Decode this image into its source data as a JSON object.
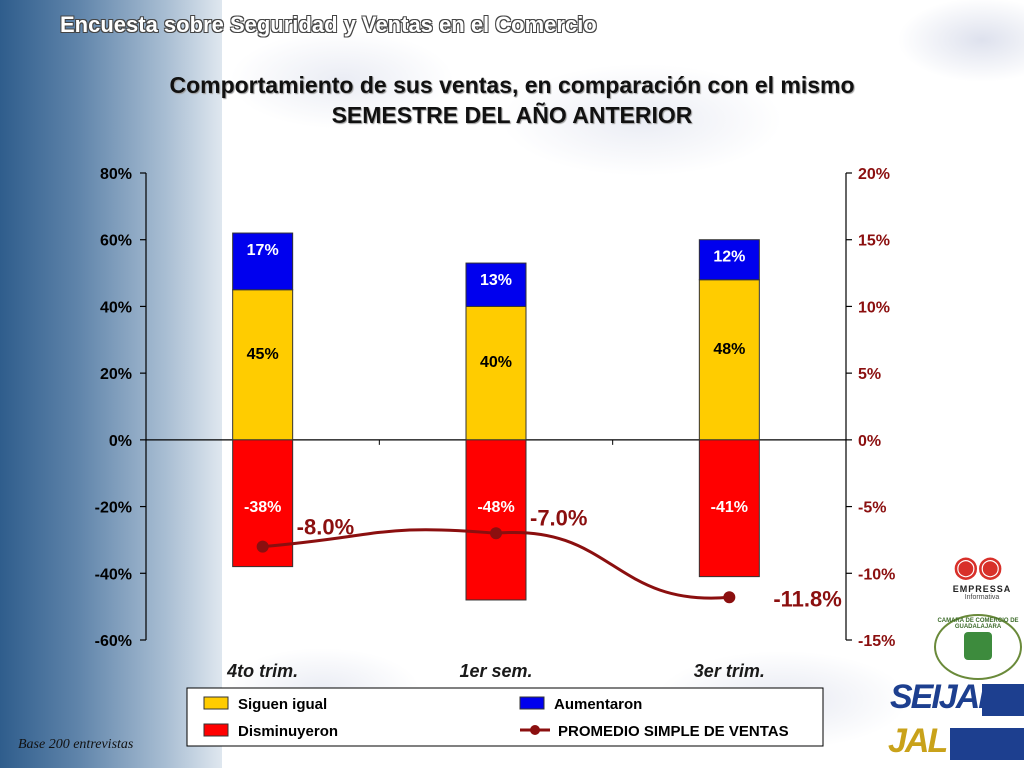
{
  "header": {
    "title": "Encuesta sobre Seguridad y Ventas en el Comercio"
  },
  "chart_data": {
    "type": "bar",
    "title_line1": "Comportamiento de sus ventas, en comparación con el mismo",
    "title_line2": "SEMESTRE DEL AÑO ANTERIOR",
    "categories": [
      "4to trim.",
      "1er sem.",
      "3er trim."
    ],
    "ylim_left": [
      -60,
      80
    ],
    "ylim_right": [
      -15,
      20
    ],
    "left_ticks": [
      "80%",
      "60%",
      "40%",
      "20%",
      "0%",
      "-20%",
      "-40%",
      "-60%"
    ],
    "right_ticks": [
      "20%",
      "15%",
      "10%",
      "5%",
      "0%",
      "-5%",
      "-10%",
      "-15%"
    ],
    "series": [
      {
        "name": "Siguen igual",
        "color": "#ffcc00",
        "values": [
          45,
          40,
          48
        ],
        "labels": [
          "45%",
          "40%",
          "48%"
        ]
      },
      {
        "name": "Aumentaron",
        "color": "#0000ee",
        "values": [
          17,
          13,
          12
        ],
        "labels": [
          "17%",
          "13%",
          "12%"
        ]
      },
      {
        "name": "Disminuyeron",
        "color": "#ff0000",
        "values": [
          -38,
          -48,
          -41
        ],
        "labels": [
          "-38%",
          "-48%",
          "-41%"
        ]
      },
      {
        "name": "PROMEDIO SIMPLE DE VENTAS",
        "type": "line",
        "axis": "right",
        "color": "#8b0f0f",
        "values": [
          -8.0,
          -7.0,
          -11.8
        ],
        "labels": [
          "-8.0%",
          "-7.0%",
          "-11.8%"
        ]
      }
    ],
    "legend": "bottom"
  },
  "footnote": "Base 200 entrevistas",
  "logos": {
    "empressa_name": "EMPRESSA",
    "empressa_sub": "Informativa",
    "camara": "CAMARA DE COMERCIO DE GUADALAJARA",
    "seijal": "SEIJAL",
    "jal": "JAL"
  }
}
